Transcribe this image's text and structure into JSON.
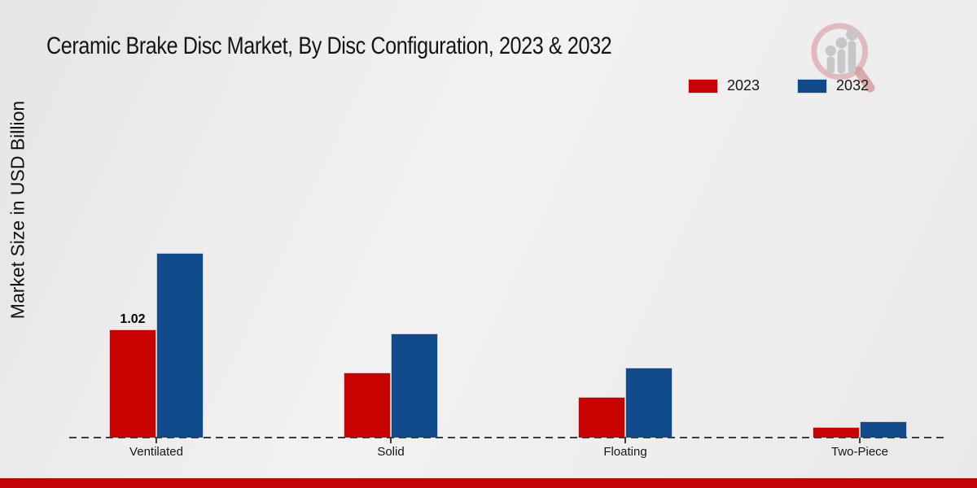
{
  "title": "Ceramic Brake Disc Market, By Disc Configuration, 2023 & 2032",
  "y_axis_label": "Market Size in USD Billion",
  "colors": {
    "series_2023": "#c80101",
    "series_2032": "#114a8b",
    "footer_bar": "#c40404",
    "axis": "#3c3c3c"
  },
  "icons": {
    "logo": "magnifier-bar-chart-logo"
  },
  "legend": {
    "position": "top-right",
    "items": [
      {
        "label": "2023",
        "color": "#c80101"
      },
      {
        "label": "2032",
        "color": "#114a8b"
      }
    ]
  },
  "chart_data": {
    "type": "bar",
    "title": "Ceramic Brake Disc Market, By Disc Configuration, 2023 & 2032",
    "xlabel": "",
    "ylabel": "Market Size in USD Billion",
    "categories": [
      "Ventilated",
      "Solid",
      "Floating",
      "Two-Piece"
    ],
    "series": [
      {
        "name": "2023",
        "color": "#c80101",
        "values": [
          1.02,
          0.61,
          0.38,
          0.1
        ]
      },
      {
        "name": "2032",
        "color": "#114a8b",
        "values": [
          1.74,
          0.98,
          0.66,
          0.15
        ]
      }
    ],
    "data_labels": [
      {
        "series": "2023",
        "category": "Ventilated",
        "text": "1.02"
      }
    ],
    "ylim": [
      0,
      2
    ],
    "grid": false,
    "y_ticks_visible": false,
    "baseline_style": "dashed",
    "legend_position": "top-right"
  },
  "footer": {}
}
